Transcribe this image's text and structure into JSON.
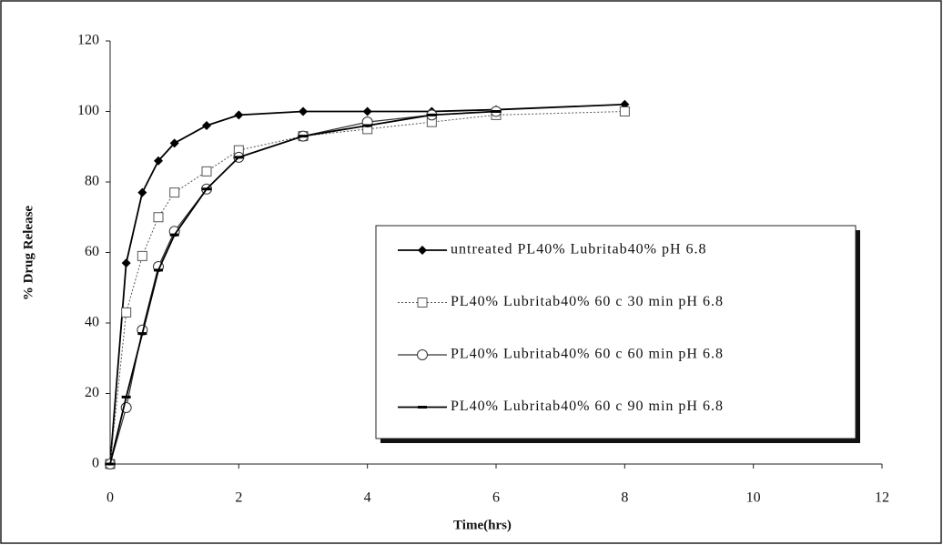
{
  "chart_data": {
    "type": "line",
    "x_label": "Time(hrs)",
    "y_label": "% Drug Release",
    "x": [
      0,
      0.25,
      0.5,
      0.75,
      1,
      1.5,
      2,
      3,
      4,
      5,
      6,
      8
    ],
    "series": [
      {
        "name": "untreated PL40% Lubritab40% pH 6.8",
        "color": "#000000",
        "marker": "diamond",
        "values": [
          0,
          57,
          77,
          86,
          91,
          96,
          99,
          100,
          100,
          100,
          100.5,
          102
        ]
      },
      {
        "name": "PL40% Lubritab40% 60 c 30 min pH 6.8",
        "color": "#555555",
        "marker": "square",
        "values": [
          0,
          43,
          59,
          70,
          77,
          83,
          89,
          93,
          95,
          97,
          99,
          100
        ]
      },
      {
        "name": "PL40% Lubritab40% 60 c 60 min pH 6.8",
        "color": "#333333",
        "marker": "circle",
        "values": [
          0,
          16,
          38,
          56,
          66,
          78,
          87,
          93,
          97,
          99,
          100,
          null
        ]
      },
      {
        "name": "PL40% Lubritab40% 60 c 90 min pH 6.8",
        "color": "#000000",
        "marker": "dash",
        "values": [
          0,
          19,
          37,
          55,
          65,
          78,
          87,
          93,
          96,
          99,
          100,
          null
        ]
      }
    ],
    "xlim": [
      0,
      12
    ],
    "xticks": [
      0,
      2,
      4,
      6,
      8,
      10,
      12
    ],
    "ylim": [
      0,
      120
    ],
    "yticks": [
      0,
      20,
      40,
      60,
      80,
      100,
      120
    ]
  }
}
